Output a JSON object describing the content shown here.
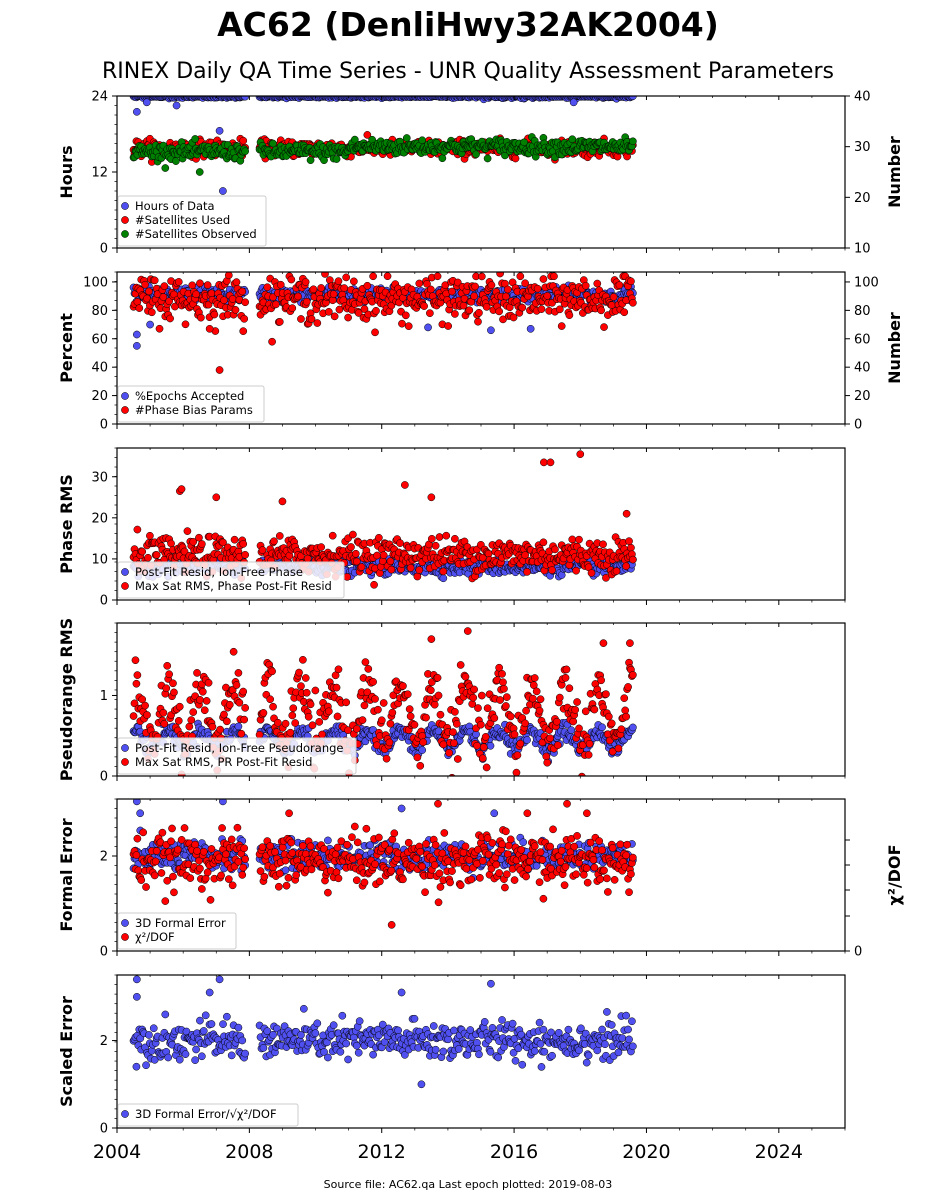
{
  "title": "AC62 (DenliHwy32AK2004)",
  "subtitle": "RINEX Daily QA Time Series - UNR Quality Assessment Parameters",
  "footer": "Source file: AC62.qa Last epoch plotted: 2019-08-03",
  "colors": {
    "blue": "#5050f0",
    "red": "#ff0000",
    "green": "#008000",
    "edge": "#000000"
  },
  "x_axis": {
    "range": [
      2004,
      2026
    ],
    "ticks": [
      2004,
      2008,
      2012,
      2016,
      2020,
      2024
    ],
    "tick_labels": [
      "2004",
      "2008",
      "2012",
      "2016",
      "2020",
      "2024"
    ],
    "data_start": 2004.5,
    "data_end": 2019.59
  },
  "chart_data": [
    {
      "type": "scatter",
      "ylabel": "Hours",
      "y2label": "Number",
      "ylim": [
        0,
        24
      ],
      "yticks": [
        0,
        12,
        24
      ],
      "yticks_labels": [
        "0",
        "12",
        "24"
      ],
      "y2lim": [
        10,
        40
      ],
      "y2ticks": [
        10,
        20,
        30,
        40
      ],
      "y2ticks_labels": [
        "10",
        "20",
        "30",
        "40"
      ],
      "legend": "lower-left",
      "series": [
        {
          "name": "Hours of Data",
          "color": "blue",
          "axis": "left",
          "typical": 24.0,
          "outliers": [
            [
              2004.6,
              21.5
            ],
            [
              2004.9,
              23.0
            ],
            [
              2005.8,
              22.5
            ],
            [
              2007.1,
              18.5
            ],
            [
              2007.2,
              9.0
            ],
            [
              2017.8,
              23.0
            ]
          ]
        },
        {
          "name": "#Satellites Used",
          "color": "red",
          "axis": "right",
          "typical": 30.0,
          "outliers": [
            [
              2009.4,
              30.0
            ]
          ]
        },
        {
          "name": "#Satellites Observed",
          "color": "green",
          "axis": "right",
          "typical": 30.0,
          "outliers": [
            [
              2006.5,
              25.0
            ]
          ]
        }
      ]
    },
    {
      "type": "scatter",
      "ylabel": "Percent",
      "y2label": "Number",
      "ylim": [
        0,
        107
      ],
      "yticks": [
        0,
        20,
        40,
        60,
        80,
        100
      ],
      "yticks_labels": [
        "0",
        "20",
        "40",
        "60",
        "80",
        "100"
      ],
      "y2ticks": [
        0,
        20,
        40,
        60,
        80,
        100
      ],
      "y2ticks_labels": [
        "0",
        "20",
        "40",
        "60",
        "80",
        "100"
      ],
      "legend": "lower-left",
      "series": [
        {
          "name": "%Epochs Accepted",
          "color": "blue",
          "typical": 91.0,
          "outliers": [
            [
              2004.6,
              55.0
            ],
            [
              2004.6,
              63.0
            ],
            [
              2005.0,
              70.0
            ],
            [
              2013.4,
              68.0
            ],
            [
              2015.3,
              66.0
            ],
            [
              2016.5,
              67.0
            ]
          ]
        },
        {
          "name": "#Phase Bias Params",
          "color": "red",
          "typical": 88.0,
          "outliers": [
            [
              2007.1,
              38.0
            ],
            [
              2006.8,
              67.0
            ],
            [
              2009.7,
              100.0
            ]
          ]
        }
      ]
    },
    {
      "type": "scatter",
      "ylabel": "Phase RMS",
      "ylim": [
        0,
        37
      ],
      "yticks": [
        0,
        10,
        20,
        30
      ],
      "yticks_labels": [
        "0",
        "10",
        "20",
        "30"
      ],
      "legend": "lower-left",
      "series": [
        {
          "name": "Post-Fit Resid, Ion-Free Phase",
          "color": "blue",
          "typical": 8.0,
          "outliers": []
        },
        {
          "name": "Max Sat RMS, Phase Post-Fit Resid",
          "color": "red",
          "typical": 11.0,
          "outliers": [
            [
              2005.9,
              26.5
            ],
            [
              2005.95,
              27.0
            ],
            [
              2007.0,
              25.0
            ],
            [
              2009.0,
              24.0
            ],
            [
              2012.7,
              28.0
            ],
            [
              2013.5,
              25.0
            ],
            [
              2016.9,
              33.5
            ],
            [
              2017.1,
              33.5
            ],
            [
              2018.0,
              35.5
            ],
            [
              2019.4,
              21.0
            ]
          ]
        }
      ]
    },
    {
      "type": "scatter",
      "ylabel": "Pseudorange RMS",
      "ylim": [
        0,
        1.9
      ],
      "yticks": [
        0,
        1
      ],
      "yticks_labels": [
        "0",
        "1"
      ],
      "legend": "lower-left",
      "series": [
        {
          "name": "Post-Fit Resid, Ion-Free Pseudorange",
          "color": "blue",
          "typical": 0.45,
          "outliers": []
        },
        {
          "name": "Max Sat RMS, PR Post-Fit Resid",
          "color": "red",
          "typical": 0.75,
          "outliers": [
            [
              2013.5,
              1.7
            ],
            [
              2014.6,
              1.8
            ],
            [
              2018.7,
              1.65
            ],
            [
              2019.5,
              1.65
            ]
          ]
        }
      ]
    },
    {
      "type": "scatter",
      "ylabel": "Formal Error",
      "y2label": "χ²/DOF",
      "ylim": [
        0,
        3.2
      ],
      "yticks": [
        0,
        2
      ],
      "yticks_labels": [
        "0",
        "2"
      ],
      "y2ticks": [
        0
      ],
      "y2ticks_labels": [
        "0"
      ],
      "legend": "lower-left",
      "series": [
        {
          "name": "3D Formal Error",
          "color": "blue",
          "typical": 2.0,
          "outliers": [
            [
              2004.6,
              3.15
            ],
            [
              2004.7,
              2.9
            ],
            [
              2007.2,
              3.15
            ],
            [
              2012.6,
              3.0
            ],
            [
              2015.4,
              2.9
            ]
          ]
        },
        {
          "name": "χ²/DOF",
          "color": "red",
          "typical": 1.9,
          "outliers": [
            [
              2013.7,
              3.1
            ],
            [
              2017.6,
              3.1
            ],
            [
              2018.2,
              2.9
            ],
            [
              2012.3,
              0.55
            ],
            [
              2009.2,
              2.9
            ],
            [
              2016.4,
              2.9
            ]
          ]
        }
      ]
    },
    {
      "type": "scatter",
      "ylabel": "Scaled Error",
      "ylim": [
        0,
        3.5
      ],
      "yticks": [
        0,
        2
      ],
      "yticks_labels": [
        "0",
        "2"
      ],
      "legend": "lower-left",
      "series": [
        {
          "name": "3D Formal Error/√χ²/DOF",
          "color": "blue",
          "typical": 2.0,
          "outliers": [
            [
              2004.6,
              3.4
            ],
            [
              2004.6,
              3.0
            ],
            [
              2007.1,
              3.4
            ],
            [
              2006.8,
              3.1
            ],
            [
              2012.6,
              3.1
            ],
            [
              2015.3,
              3.3
            ],
            [
              2013.2,
              1.0
            ]
          ]
        }
      ]
    }
  ]
}
